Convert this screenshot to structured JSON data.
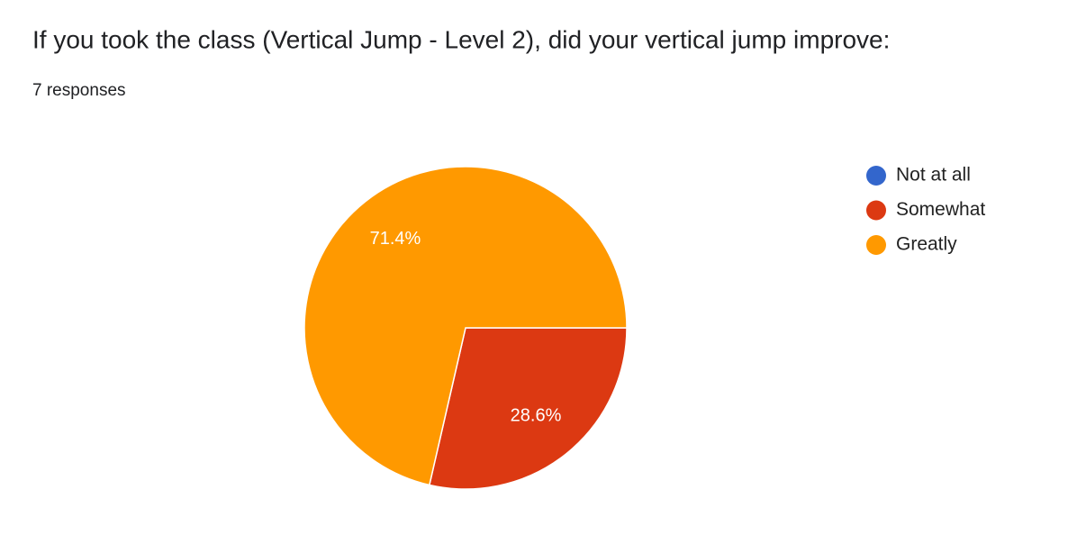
{
  "chart_data": {
    "type": "pie",
    "title": "If you took the class (Vertical Jump - Level 2), did your vertical jump improve:",
    "subtitle": "7 responses",
    "categories": [
      "Not at all",
      "Somewhat",
      "Greatly"
    ],
    "values": [
      0,
      28.6,
      71.4
    ],
    "value_labels": [
      null,
      "28.6%",
      "71.4%"
    ],
    "colors": [
      "#3366cc",
      "#dc3912",
      "#ff9900"
    ],
    "legend": "right"
  }
}
